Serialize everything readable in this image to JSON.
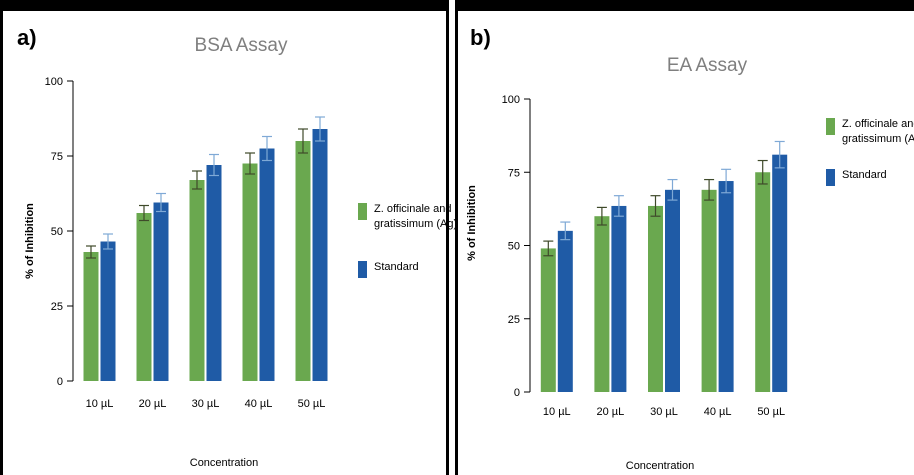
{
  "colors": {
    "series_1": "#6aa84f",
    "series_2": "#1f5ba6",
    "err_1": "#3f4a2a",
    "err_2": "#7fa9d6"
  },
  "chart_data": [
    {
      "panel_label": "a)",
      "type": "bar",
      "title": "BSA Assay",
      "xlabel": "Concentration",
      "ylabel": "% of Inhibition",
      "ylim": [
        0,
        100
      ],
      "yticks": [
        "0",
        "25",
        "50",
        "75",
        "100"
      ],
      "categories": [
        "10 µL",
        "20 µL",
        "30 µL",
        "40 µL",
        "50 µL"
      ],
      "legend_position": "right",
      "series": [
        {
          "name": "Z. officinale and O. gratissimum (Ag)",
          "name_lines": [
            "Z. officinale and O.",
            "gratissimum (Ag)"
          ],
          "values": [
            43,
            56,
            67,
            72.5,
            80
          ],
          "errors": [
            2,
            2.5,
            3,
            3.5,
            4
          ]
        },
        {
          "name": "Standard",
          "name_lines": [
            "Standard"
          ],
          "values": [
            46.5,
            59.5,
            72,
            77.5,
            84
          ],
          "errors": [
            2.5,
            3,
            3.5,
            4,
            4
          ]
        }
      ]
    },
    {
      "panel_label": "b)",
      "type": "bar",
      "title": "EA Assay",
      "xlabel": "Concentration",
      "ylabel": "% of Inhibition",
      "ylim": [
        0,
        100
      ],
      "yticks": [
        "0",
        "25",
        "50",
        "75",
        "100"
      ],
      "categories": [
        "10 µL",
        "20 µL",
        "30 µL",
        "40 µL",
        "50 µL"
      ],
      "legend_position": "top-right",
      "series": [
        {
          "name": "Z. officinale and O. gratissimum (Ag)",
          "name_lines": [
            "Z. officinale and O.",
            "gratissimum (Ag)"
          ],
          "values": [
            49,
            60,
            63.5,
            69,
            75
          ],
          "errors": [
            2.5,
            3,
            3.5,
            3.5,
            4
          ]
        },
        {
          "name": "Standard",
          "name_lines": [
            "Standard"
          ],
          "values": [
            55,
            63.5,
            69,
            72,
            81
          ],
          "errors": [
            3,
            3.5,
            3.5,
            4,
            4.5
          ]
        }
      ]
    }
  ]
}
